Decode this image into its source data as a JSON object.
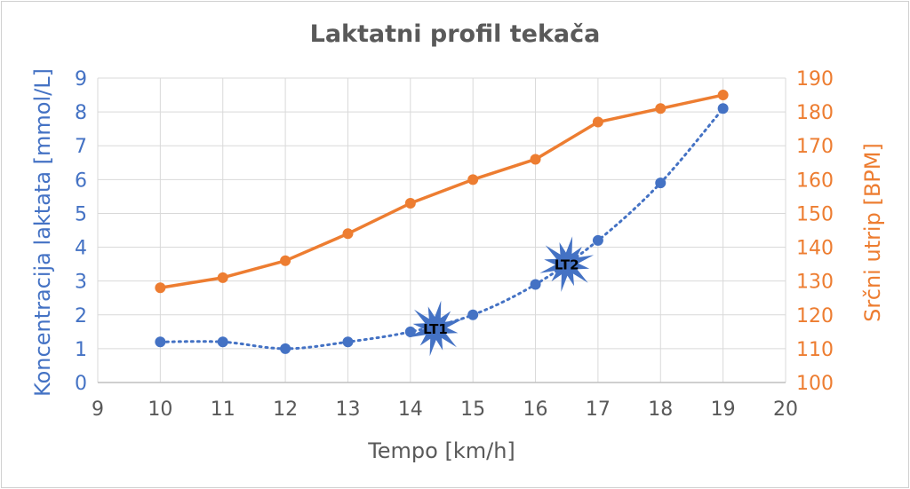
{
  "chart_data": {
    "type": "line",
    "title": "Laktatni profil tekača",
    "xlabel": "Tempo [km/h]",
    "ylabel": "Koncentracija laktata [mmol/L]",
    "y2label": "Srčni utrip [BPM]",
    "xlim": [
      9,
      20
    ],
    "ylim": [
      0,
      9
    ],
    "y2lim": [
      100,
      190
    ],
    "xticks": [
      "9",
      "10",
      "11",
      "12",
      "13",
      "14",
      "15",
      "16",
      "17",
      "18",
      "19",
      "20"
    ],
    "yticks": [
      "0",
      "1",
      "2",
      "3",
      "4",
      "5",
      "6",
      "7",
      "8",
      "9"
    ],
    "y2ticks": [
      "100",
      "110",
      "120",
      "130",
      "140",
      "150",
      "160",
      "170",
      "180",
      "190"
    ],
    "grid": true,
    "x": [
      10,
      11,
      12,
      13,
      14,
      15,
      16,
      17,
      18,
      19
    ],
    "series": [
      {
        "axis": "left",
        "color": "#4472c4",
        "style": "dotted-smooth",
        "values": [
          1.2,
          1.2,
          1.0,
          1.2,
          1.5,
          2.0,
          2.9,
          4.2,
          5.9,
          8.1
        ]
      },
      {
        "axis": "right",
        "color": "#ed7d31",
        "style": "solid",
        "values": [
          128,
          131,
          136,
          144,
          153,
          160,
          166,
          177,
          181,
          185
        ]
      }
    ],
    "annotations": [
      {
        "label": "LT1",
        "x": 14.4,
        "y": 1.6
      },
      {
        "label": "LT2",
        "x": 16.5,
        "y": 3.5
      }
    ]
  }
}
